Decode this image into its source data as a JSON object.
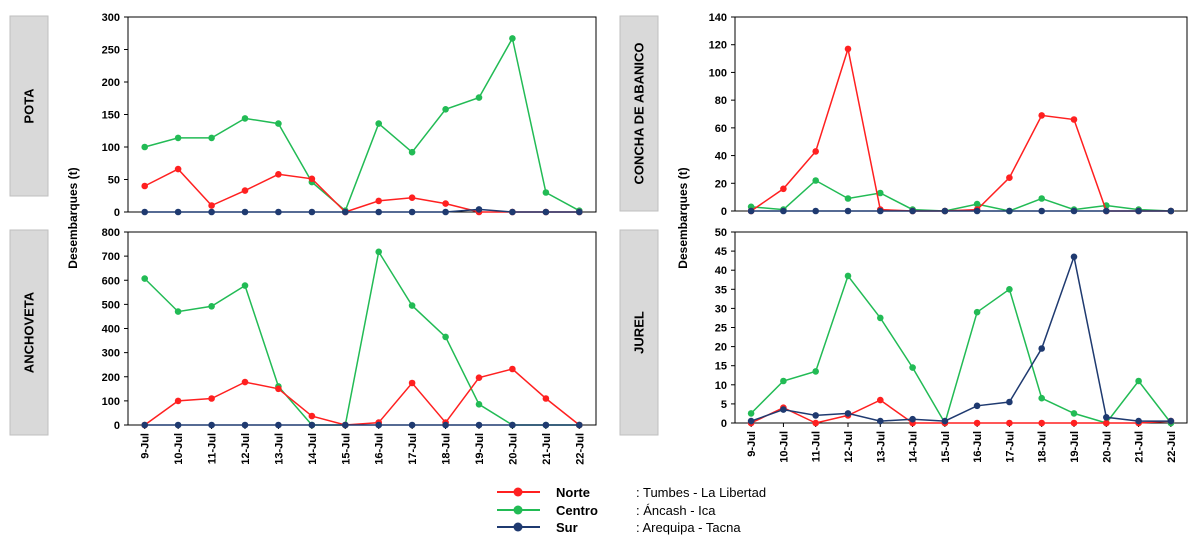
{
  "ylabel": "Desembarques (t)",
  "legend": [
    {
      "name": "Norte",
      "region": ": Tumbes - La Libertad",
      "color": "#FF2020"
    },
    {
      "name": "Centro",
      "region": ": Áncash - Ica",
      "color": "#22BB55"
    },
    {
      "name": "Sur",
      "region": ": Arequipa - Tacna",
      "color": "#1F3A70"
    }
  ],
  "chart_data": [
    {
      "type": "line",
      "title": "POTA",
      "categories": [
        "9-Jul",
        "10-Jul",
        "11-Jul",
        "12-Jul",
        "13-Jul",
        "14-Jul",
        "15-Jul",
        "16-Jul",
        "17-Jul",
        "18-Jul",
        "19-Jul",
        "20-Jul",
        "21-Jul",
        "22-Jul"
      ],
      "ylim": [
        0,
        300
      ],
      "yticks": [
        0,
        50,
        100,
        150,
        200,
        250,
        300
      ],
      "show_xticks": false,
      "series": [
        {
          "name": "Norte",
          "values": [
            40,
            66,
            10,
            33,
            58,
            51,
            0,
            17,
            22,
            13,
            0,
            0,
            0,
            0
          ]
        },
        {
          "name": "Centro",
          "values": [
            100,
            114,
            114,
            144,
            136,
            46,
            2,
            136,
            92,
            158,
            176,
            267,
            30,
            2
          ]
        },
        {
          "name": "Sur",
          "values": [
            0,
            0,
            0,
            0,
            0,
            0,
            0,
            0,
            0,
            0,
            4,
            0,
            0,
            0
          ]
        }
      ]
    },
    {
      "type": "line",
      "title": "ANCHOVETA",
      "categories": [
        "9-Jul",
        "10-Jul",
        "11-Jul",
        "12-Jul",
        "13-Jul",
        "14-Jul",
        "15-Jul",
        "16-Jul",
        "17-Jul",
        "18-Jul",
        "19-Jul",
        "20-Jul",
        "21-Jul",
        "22-Jul"
      ],
      "ylim": [
        0,
        800
      ],
      "yticks": [
        0,
        100,
        200,
        300,
        400,
        500,
        600,
        700,
        800
      ],
      "show_xticks": true,
      "series": [
        {
          "name": "Norte",
          "values": [
            0,
            100,
            110,
            178,
            150,
            37,
            0,
            10,
            174,
            10,
            196,
            232,
            110,
            0
          ]
        },
        {
          "name": "Centro",
          "values": [
            607,
            470,
            492,
            578,
            160,
            0,
            0,
            718,
            495,
            365,
            86,
            0,
            0,
            0
          ]
        },
        {
          "name": "Sur",
          "values": [
            0,
            0,
            0,
            0,
            0,
            0,
            0,
            0,
            0,
            0,
            0,
            0,
            0,
            0
          ]
        }
      ]
    },
    {
      "type": "line",
      "title": "CONCHA DE ABANICO",
      "categories": [
        "9-Jul",
        "10-Jul",
        "11-Jul",
        "12-Jul",
        "13-Jul",
        "14-Jul",
        "15-Jul",
        "16-Jul",
        "17-Jul",
        "18-Jul",
        "19-Jul",
        "20-Jul",
        "21-Jul",
        "22-Jul"
      ],
      "ylim": [
        0,
        140
      ],
      "yticks": [
        0,
        20,
        40,
        60,
        80,
        100,
        120,
        140
      ],
      "show_xticks": false,
      "series": [
        {
          "name": "Norte",
          "values": [
            0,
            16,
            43,
            117,
            1,
            0,
            0,
            1,
            24,
            69,
            66,
            0,
            0,
            0
          ]
        },
        {
          "name": "Centro",
          "values": [
            3,
            1,
            22,
            9,
            13,
            1,
            0,
            5,
            0,
            9,
            1,
            4,
            1,
            0
          ]
        },
        {
          "name": "Sur",
          "values": [
            0,
            0,
            0,
            0,
            0,
            0,
            0,
            0,
            0,
            0,
            0,
            0,
            0,
            0
          ]
        }
      ]
    },
    {
      "type": "line",
      "title": "JUREL",
      "categories": [
        "9-Jul",
        "10-Jul",
        "11-Jul",
        "12-Jul",
        "13-Jul",
        "14-Jul",
        "15-Jul",
        "16-Jul",
        "17-Jul",
        "18-Jul",
        "19-Jul",
        "20-Jul",
        "21-Jul",
        "22-Jul"
      ],
      "ylim": [
        0,
        50
      ],
      "yticks": [
        0,
        5,
        10,
        15,
        20,
        25,
        30,
        35,
        40,
        45,
        50
      ],
      "show_xticks": true,
      "series": [
        {
          "name": "Norte",
          "values": [
            0,
            4,
            0,
            2,
            6,
            0,
            0,
            0,
            0,
            0,
            0,
            0,
            0,
            0.5
          ]
        },
        {
          "name": "Centro",
          "values": [
            2.5,
            11,
            13.5,
            38.5,
            27.5,
            14.5,
            0,
            29,
            35,
            6.5,
            2.5,
            0,
            11,
            0
          ]
        },
        {
          "name": "Sur",
          "values": [
            0.5,
            3.5,
            2,
            2.5,
            0.5,
            1,
            0.5,
            4.5,
            5.5,
            19.5,
            43.5,
            1.5,
            0.5,
            0.5
          ]
        }
      ]
    }
  ]
}
